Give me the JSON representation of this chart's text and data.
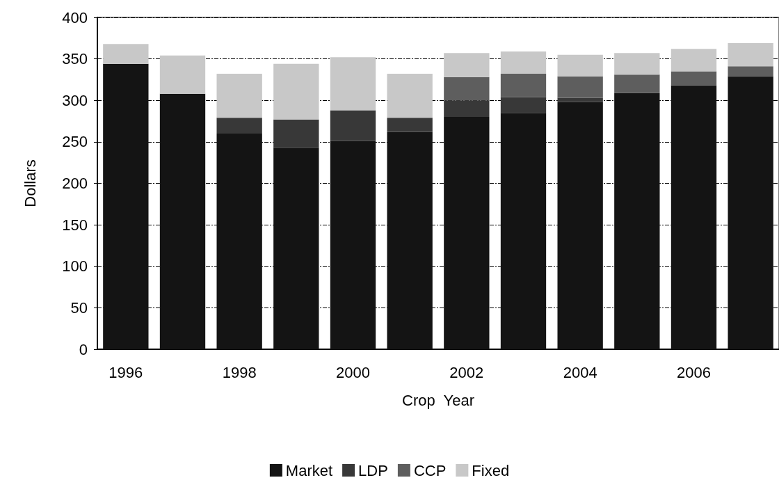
{
  "chart_data": {
    "type": "bar",
    "stacked": true,
    "xlabel": "Crop  Year",
    "ylabel": "Dollars",
    "categories": [
      "1996",
      null,
      "1998",
      null,
      "2000",
      null,
      "2002",
      null,
      "2004",
      null,
      "2006",
      null
    ],
    "series": [
      {
        "name": "Market",
        "color": "#141414",
        "values": [
          344,
          308,
          260,
          243,
          251,
          262,
          280,
          285,
          298,
          309,
          318,
          329
        ]
      },
      {
        "name": "LDP",
        "color": "#383838",
        "values": [
          0,
          0,
          19,
          34,
          37,
          17,
          20,
          19,
          5,
          0,
          0,
          0
        ]
      },
      {
        "name": "CCP",
        "color": "#5e5e5e",
        "values": [
          0,
          0,
          0,
          0,
          0,
          0,
          28,
          28,
          26,
          22,
          17,
          12
        ]
      },
      {
        "name": "Fixed",
        "color": "#c8c8c8",
        "values": [
          24,
          46,
          53,
          67,
          64,
          53,
          29,
          27,
          26,
          26,
          27,
          28
        ]
      }
    ],
    "ylim": [
      0,
      400
    ],
    "yticks": [
      0,
      50,
      100,
      150,
      200,
      250,
      300,
      350,
      400
    ],
    "grid": "y",
    "legend": "bottom"
  }
}
